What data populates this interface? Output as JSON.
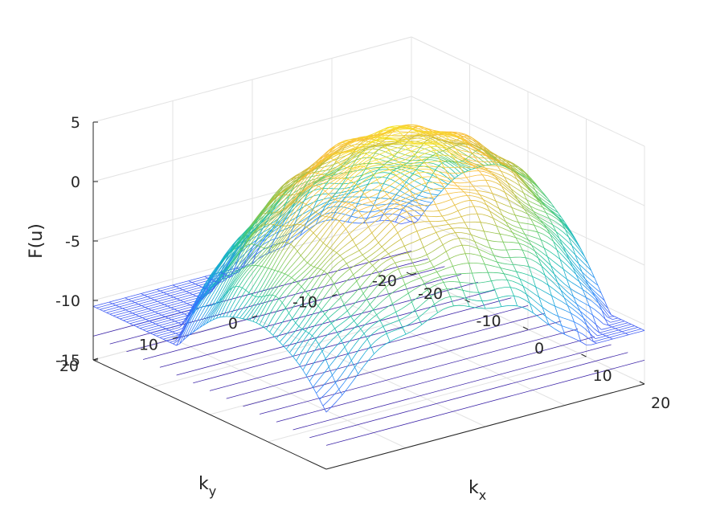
{
  "chart_data": {
    "type": "mesh3d",
    "xlabel": "k",
    "xlabel_sub": "x",
    "ylabel": "k",
    "ylabel_sub": "y",
    "zlabel": "F(u)",
    "xlim": [
      -20,
      20
    ],
    "ylim": [
      -20,
      20
    ],
    "zlim": [
      -15,
      5
    ],
    "x_ticks": [
      "-20",
      "-10",
      "0",
      "10",
      "20"
    ],
    "y_ticks": [
      "-20",
      "-10",
      "0",
      "10",
      "20"
    ],
    "z_ticks": [
      "-15",
      "-10",
      "-5",
      "0",
      "5"
    ],
    "x_tick_values": [
      -20,
      -10,
      0,
      10,
      20
    ],
    "y_tick_values": [
      -20,
      -10,
      0,
      10,
      20
    ],
    "z_tick_values": [
      -15,
      -10,
      -5,
      0,
      5
    ],
    "grid": true,
    "colormap": [
      "#3e26a8",
      "#4456f2",
      "#2f86fb",
      "#17aad8",
      "#21c49f",
      "#6ecb5e",
      "#c6bc3b",
      "#fbbe3a",
      "#f5e52a"
    ],
    "surface": {
      "description_of_shape": "ridge",
      "peak_value": 4.5,
      "edge_value": -10.5,
      "floor_value": -13
    }
  }
}
